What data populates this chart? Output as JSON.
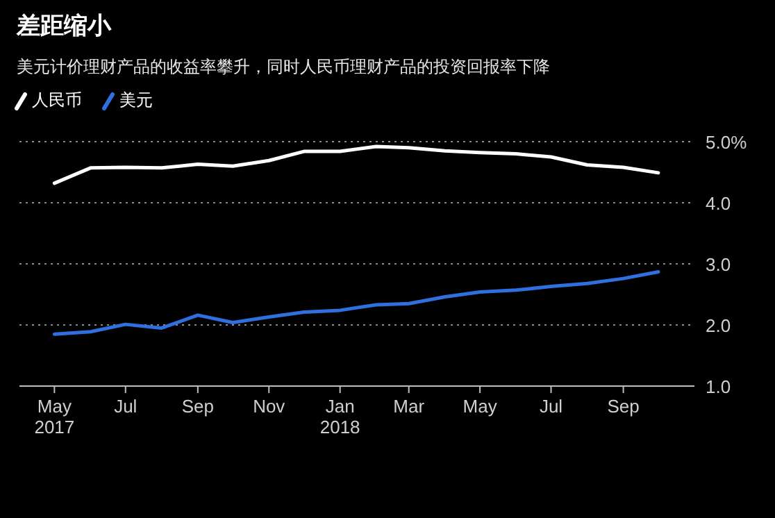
{
  "chart_data": {
    "type": "line",
    "title": "差距缩小",
    "subtitle": "美元计价理财产品的收益率攀升，同时人民币理财产品的投资回报率下降",
    "x": [
      "2017-05",
      "2017-06",
      "2017-07",
      "2017-08",
      "2017-09",
      "2017-10",
      "2017-11",
      "2017-12",
      "2018-01",
      "2018-02",
      "2018-03",
      "2018-04",
      "2018-05",
      "2018-06",
      "2018-07",
      "2018-08",
      "2018-09",
      "2018-10"
    ],
    "series": [
      {
        "name": "人民币",
        "color": "#ffffff",
        "values": [
          4.32,
          4.57,
          4.58,
          4.57,
          4.63,
          4.6,
          4.69,
          4.84,
          4.84,
          4.92,
          4.9,
          4.85,
          4.82,
          4.8,
          4.75,
          4.62,
          4.58,
          4.49
        ]
      },
      {
        "name": "美元",
        "color": "#2f6fe0",
        "values": [
          1.85,
          1.89,
          2.01,
          1.95,
          2.16,
          2.04,
          2.13,
          2.21,
          2.24,
          2.33,
          2.35,
          2.46,
          2.54,
          2.57,
          2.63,
          2.68,
          2.76,
          2.87
        ]
      }
    ],
    "xlim": [
      "2017-04-01",
      "2018-11-01"
    ],
    "xticks": [
      {
        "value": "2017-05",
        "label": "May\n2017"
      },
      {
        "value": "2017-07",
        "label": "Jul"
      },
      {
        "value": "2017-09",
        "label": "Sep"
      },
      {
        "value": "2017-11",
        "label": "Nov"
      },
      {
        "value": "2018-01",
        "label": "Jan\n2018"
      },
      {
        "value": "2018-03",
        "label": "Mar"
      },
      {
        "value": "2018-05",
        "label": "May"
      },
      {
        "value": "2018-07",
        "label": "Jul"
      },
      {
        "value": "2018-09",
        "label": "Sep"
      }
    ],
    "ylim": [
      1.0,
      5.0
    ],
    "yticks": [
      {
        "value": 1,
        "label": "1.0"
      },
      {
        "value": 2,
        "label": "2.0"
      },
      {
        "value": 3,
        "label": "3.0"
      },
      {
        "value": 4,
        "label": "4.0"
      },
      {
        "value": 5,
        "label": "5.0%"
      }
    ],
    "grid": "y",
    "legend": "top left",
    "line_style": "solid",
    "marker": "none"
  }
}
